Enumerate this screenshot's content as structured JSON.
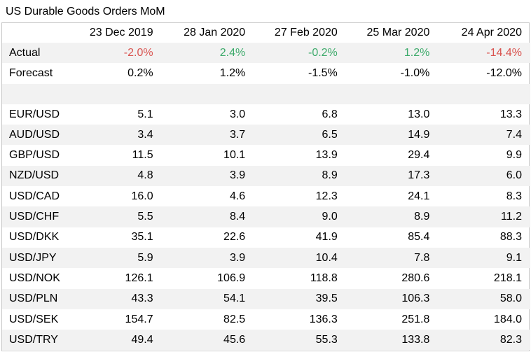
{
  "title": "US Durable Goods Orders MoM",
  "columns": [
    "23 Dec 2019",
    "28 Jan 2020",
    "27 Feb 2020",
    "25 Mar 2020",
    "24 Apr 2020"
  ],
  "colors": {
    "negative": "#d9534f",
    "positive": "#3caa6a"
  },
  "actual": {
    "label": "Actual",
    "values": [
      "-2.0%",
      "2.4%",
      "-0.2%",
      "1.2%",
      "-14.4%"
    ],
    "signs": [
      "neg",
      "pos",
      "pos",
      "pos",
      "neg"
    ]
  },
  "forecast": {
    "label": "Forecast",
    "values": [
      "0.2%",
      "1.2%",
      "-1.5%",
      "-1.0%",
      "-12.0%"
    ]
  },
  "pairs": [
    {
      "label": "EUR/USD",
      "values": [
        "5.1",
        "3.0",
        "6.8",
        "13.0",
        "13.3"
      ]
    },
    {
      "label": "AUD/USD",
      "values": [
        "3.4",
        "3.7",
        "6.5",
        "14.9",
        "7.4"
      ]
    },
    {
      "label": "GBP/USD",
      "values": [
        "11.5",
        "10.1",
        "13.9",
        "29.4",
        "9.9"
      ]
    },
    {
      "label": "NZD/USD",
      "values": [
        "4.8",
        "3.9",
        "8.9",
        "17.3",
        "6.0"
      ]
    },
    {
      "label": "USD/CAD",
      "values": [
        "16.0",
        "4.6",
        "12.3",
        "24.1",
        "8.3"
      ]
    },
    {
      "label": "USD/CHF",
      "values": [
        "5.5",
        "8.4",
        "9.0",
        "8.9",
        "11.2"
      ]
    },
    {
      "label": "USD/DKK",
      "values": [
        "35.1",
        "22.6",
        "41.9",
        "85.4",
        "88.3"
      ]
    },
    {
      "label": "USD/JPY",
      "values": [
        "5.9",
        "3.9",
        "10.4",
        "7.8",
        "9.1"
      ]
    },
    {
      "label": "USD/NOK",
      "values": [
        "126.1",
        "106.9",
        "118.8",
        "280.6",
        "218.1"
      ]
    },
    {
      "label": "USD/PLN",
      "values": [
        "43.3",
        "54.1",
        "39.5",
        "106.3",
        "58.0"
      ]
    },
    {
      "label": "USD/SEK",
      "values": [
        "154.7",
        "82.5",
        "136.3",
        "251.8",
        "184.0"
      ]
    },
    {
      "label": "USD/TRY",
      "values": [
        "49.4",
        "45.6",
        "55.3",
        "133.8",
        "82.3"
      ]
    }
  ]
}
